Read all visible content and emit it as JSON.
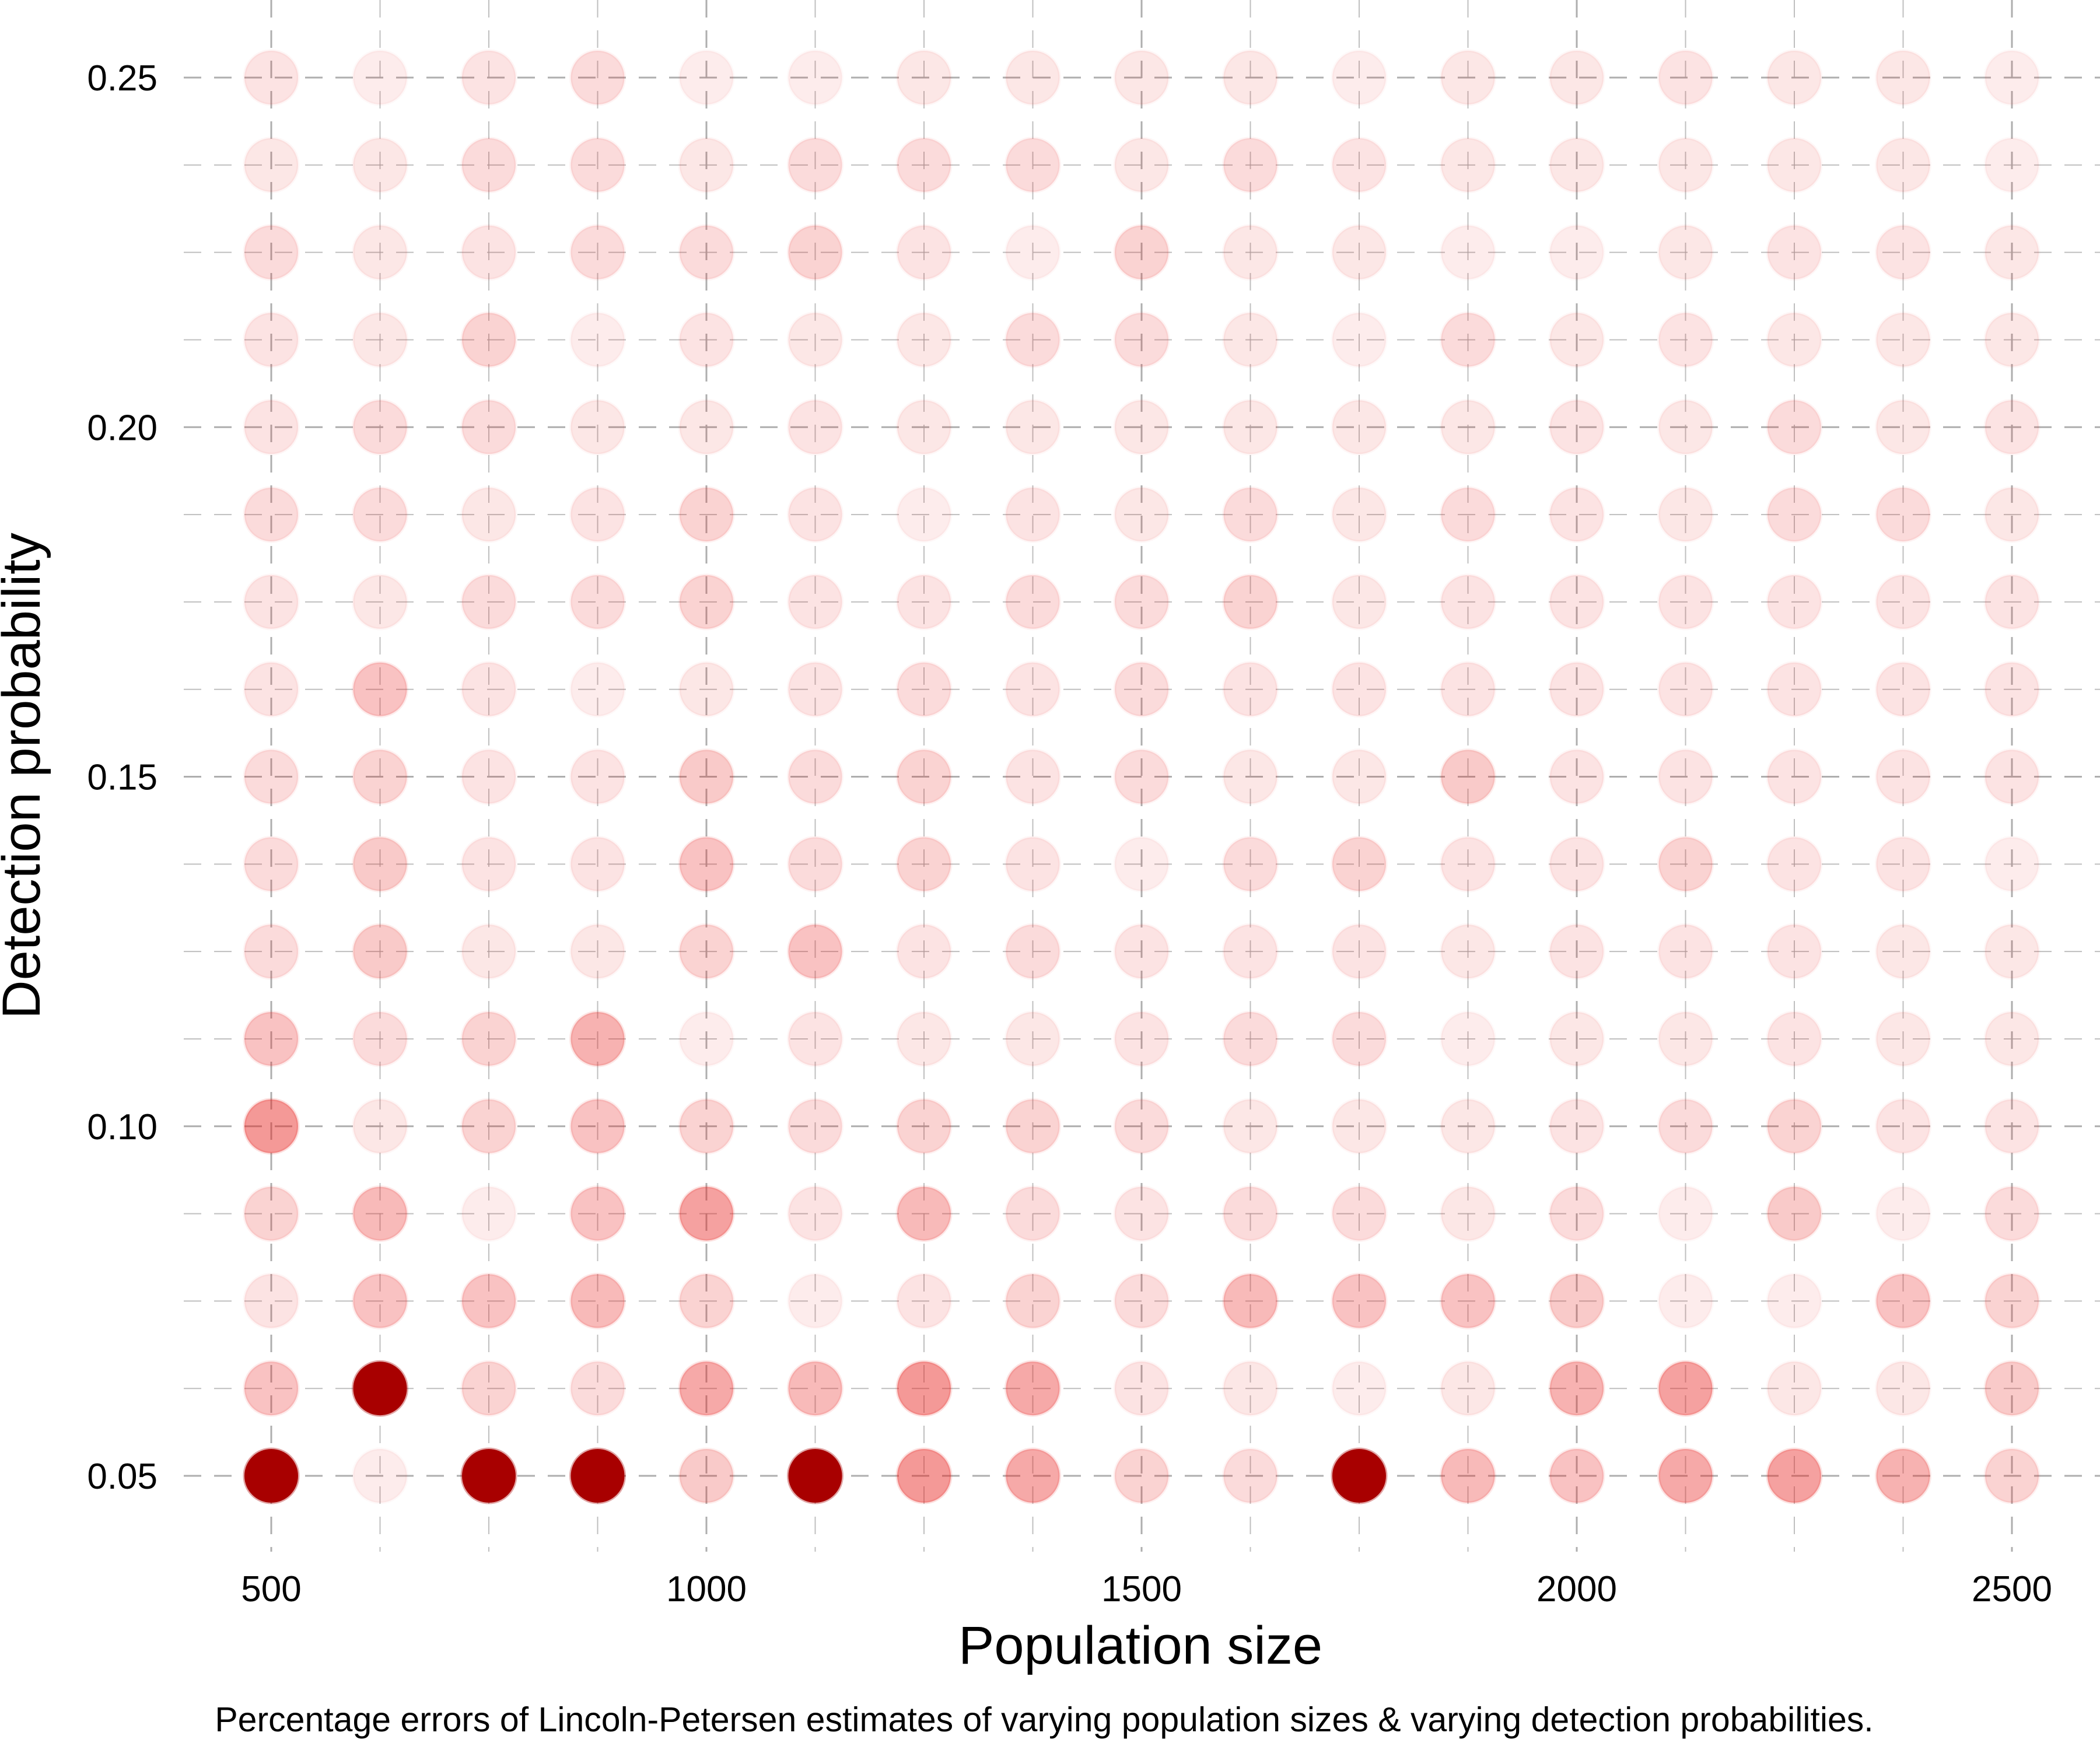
{
  "chart_data": {
    "type": "scatter",
    "subtitle": "",
    "caption": "Percentage errors of Lincoln-Petersen estimates of varying population sizes & varying detection probabilities.",
    "xlabel": "Population size",
    "ylabel": "Detection probability",
    "x": [
      500,
      625,
      750,
      875,
      1000,
      1125,
      1250,
      1375,
      1500,
      1625,
      1750,
      1875,
      2000,
      2125,
      2250,
      2375,
      2500
    ],
    "y": [
      0.05,
      0.0625,
      0.075,
      0.0875,
      0.1,
      0.1125,
      0.125,
      0.1375,
      0.15,
      0.1625,
      0.175,
      0.1875,
      0.2,
      0.2125,
      0.225,
      0.2375,
      0.25
    ],
    "xlim": [
      430,
      2600
    ],
    "ylim": [
      0.04,
      0.26
    ],
    "xticks": [
      500,
      1000,
      1500,
      2000,
      2500
    ],
    "xtick_labels": [
      "500",
      "1000",
      "1500",
      "2000",
      "2500"
    ],
    "yticks": [
      0.05,
      0.1,
      0.15,
      0.2,
      0.25
    ],
    "ytick_labels": [
      "0.05",
      "0.10",
      "0.15",
      "0.20",
      "0.25"
    ],
    "grid": "dashed, both axes",
    "legend": "none",
    "color_scale": "percentage error shown as opacity of red (0 = light pink, 1 = dark red)",
    "colors": {
      "point_fill": "#e8221f",
      "point_max": "#a80000",
      "grid": "#aaaaaa"
    },
    "z_note": "z = relative percentage error intensity (0-1) read from point colour; rows indexed by y, columns by x",
    "z": [
      [
        1.0,
        0.05,
        1.0,
        1.0,
        0.25,
        1.0,
        0.55,
        0.45,
        0.2,
        0.15,
        1.0,
        0.35,
        0.3,
        0.45,
        0.5,
        0.4,
        0.2
      ],
      [
        0.3,
        1.0,
        0.2,
        0.15,
        0.45,
        0.35,
        0.55,
        0.45,
        0.1,
        0.08,
        0.05,
        0.08,
        0.4,
        0.5,
        0.08,
        0.08,
        0.25
      ],
      [
        0.1,
        0.3,
        0.3,
        0.35,
        0.2,
        0.05,
        0.1,
        0.2,
        0.15,
        0.35,
        0.3,
        0.3,
        0.25,
        0.05,
        0.05,
        0.3,
        0.2
      ],
      [
        0.2,
        0.35,
        0.05,
        0.3,
        0.5,
        0.1,
        0.35,
        0.15,
        0.1,
        0.15,
        0.15,
        0.08,
        0.15,
        0.05,
        0.25,
        0.05,
        0.15
      ],
      [
        0.55,
        0.08,
        0.2,
        0.3,
        0.2,
        0.15,
        0.2,
        0.2,
        0.15,
        0.08,
        0.08,
        0.08,
        0.1,
        0.15,
        0.2,
        0.1,
        0.1
      ],
      [
        0.3,
        0.15,
        0.2,
        0.4,
        0.05,
        0.1,
        0.08,
        0.08,
        0.1,
        0.15,
        0.15,
        0.05,
        0.08,
        0.08,
        0.1,
        0.08,
        0.08
      ],
      [
        0.15,
        0.25,
        0.08,
        0.08,
        0.2,
        0.3,
        0.1,
        0.15,
        0.1,
        0.1,
        0.1,
        0.08,
        0.1,
        0.1,
        0.1,
        0.08,
        0.08
      ],
      [
        0.15,
        0.25,
        0.1,
        0.1,
        0.3,
        0.15,
        0.2,
        0.1,
        0.05,
        0.15,
        0.2,
        0.1,
        0.1,
        0.2,
        0.1,
        0.1,
        0.05
      ],
      [
        0.15,
        0.2,
        0.1,
        0.1,
        0.25,
        0.15,
        0.2,
        0.1,
        0.15,
        0.08,
        0.08,
        0.25,
        0.1,
        0.1,
        0.1,
        0.1,
        0.1
      ],
      [
        0.1,
        0.3,
        0.1,
        0.05,
        0.08,
        0.1,
        0.15,
        0.1,
        0.15,
        0.1,
        0.1,
        0.1,
        0.1,
        0.1,
        0.1,
        0.1,
        0.1
      ],
      [
        0.1,
        0.08,
        0.15,
        0.15,
        0.2,
        0.1,
        0.1,
        0.15,
        0.15,
        0.2,
        0.08,
        0.1,
        0.1,
        0.1,
        0.1,
        0.1,
        0.1
      ],
      [
        0.15,
        0.15,
        0.08,
        0.1,
        0.2,
        0.1,
        0.05,
        0.1,
        0.08,
        0.15,
        0.08,
        0.15,
        0.1,
        0.08,
        0.15,
        0.15,
        0.08
      ],
      [
        0.1,
        0.15,
        0.15,
        0.08,
        0.08,
        0.1,
        0.08,
        0.08,
        0.08,
        0.08,
        0.08,
        0.08,
        0.1,
        0.08,
        0.15,
        0.08,
        0.1
      ],
      [
        0.1,
        0.08,
        0.2,
        0.05,
        0.1,
        0.08,
        0.08,
        0.15,
        0.15,
        0.08,
        0.05,
        0.15,
        0.08,
        0.1,
        0.08,
        0.08,
        0.08
      ],
      [
        0.15,
        0.08,
        0.1,
        0.15,
        0.15,
        0.2,
        0.1,
        0.05,
        0.2,
        0.08,
        0.08,
        0.05,
        0.05,
        0.08,
        0.1,
        0.1,
        0.08
      ],
      [
        0.08,
        0.08,
        0.15,
        0.15,
        0.08,
        0.15,
        0.15,
        0.15,
        0.08,
        0.15,
        0.1,
        0.08,
        0.08,
        0.08,
        0.08,
        0.08,
        0.05
      ],
      [
        0.1,
        0.05,
        0.1,
        0.15,
        0.05,
        0.05,
        0.08,
        0.08,
        0.08,
        0.08,
        0.05,
        0.08,
        0.08,
        0.1,
        0.08,
        0.08,
        0.05
      ]
    ]
  }
}
